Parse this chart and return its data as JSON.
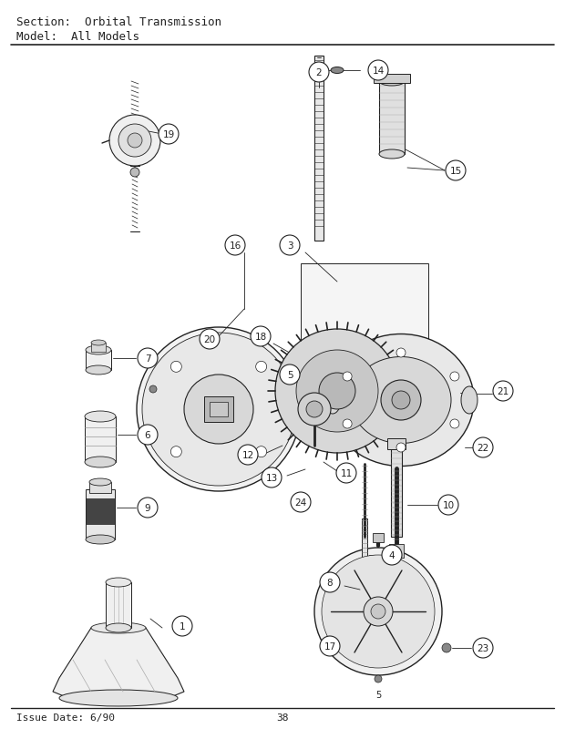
{
  "title_line1": "Section:  Orbital Transmission",
  "title_line2": "Model:  All Models",
  "footer_date": "Issue Date: 6/90",
  "footer_page": "38",
  "bg_color": "#ffffff",
  "lc": "#222222",
  "figsize": [
    6.2,
    8.12
  ],
  "dpi": 100
}
